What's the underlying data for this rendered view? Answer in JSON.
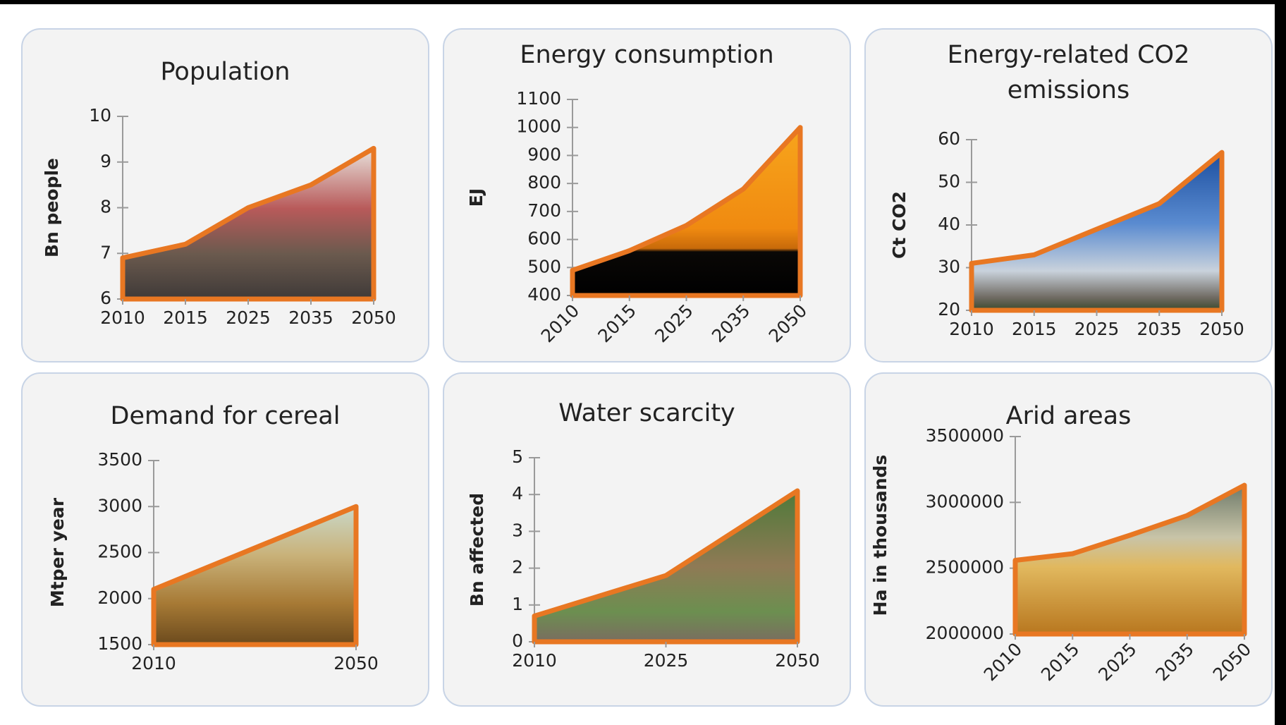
{
  "chart_data": [
    {
      "type": "area",
      "title": "Population",
      "y_label": "Bn people",
      "categories": [
        "2010",
        "2015",
        "2025",
        "2035",
        "2050"
      ],
      "values": [
        6.9,
        7.2,
        8.0,
        8.5,
        9.3
      ],
      "color": "#e87722",
      "ylim": [
        6,
        10
      ],
      "yticks": [
        6,
        7,
        8,
        9,
        10
      ]
    },
    {
      "type": "area",
      "title": "Energy consumption",
      "y_label": "EJ",
      "categories": [
        "2010",
        "2015",
        "2025",
        "2035",
        "2050"
      ],
      "values": [
        490,
        560,
        650,
        780,
        1000
      ],
      "color": "#e87722",
      "ylim": [
        400,
        1100
      ],
      "yticks": [
        400,
        500,
        600,
        700,
        800,
        900,
        1000,
        1100
      ]
    },
    {
      "type": "area",
      "title": "Energy-related CO2 emissions",
      "y_label": "Ct CO2",
      "categories": [
        "2010",
        "2015",
        "2025",
        "2035",
        "2050"
      ],
      "values": [
        31,
        33,
        39,
        45,
        57
      ],
      "color": "#e87722",
      "ylim": [
        20,
        60
      ],
      "yticks": [
        20,
        30,
        40,
        50,
        60
      ]
    },
    {
      "type": "area",
      "title": "Demand for cereal",
      "y_label": "Mtper year",
      "categories": [
        "2010",
        "2050"
      ],
      "values": [
        2100,
        3000
      ],
      "color": "#e87722",
      "ylim": [
        1500,
        3500
      ],
      "yticks": [
        1500,
        2000,
        2500,
        3000,
        3500
      ]
    },
    {
      "type": "area",
      "title": "Water scarcity",
      "y_label": "Bn affected",
      "categories": [
        "2010",
        "2025",
        "2050"
      ],
      "values": [
        0.7,
        1.8,
        4.1
      ],
      "color": "#e87722",
      "ylim": [
        0,
        5
      ],
      "yticks": [
        0,
        1,
        2,
        3,
        4,
        5
      ]
    },
    {
      "type": "area",
      "title": "Arid areas",
      "y_label": "Ha in thousands",
      "categories": [
        "2010",
        "2015",
        "2025",
        "2035",
        "2050"
      ],
      "values": [
        2560000,
        2610000,
        2750000,
        2900000,
        3130000
      ],
      "color": "#e87722",
      "ylim": [
        2000000,
        3500000
      ],
      "yticks": [
        2000000,
        2500000,
        3000000,
        3500000
      ]
    }
  ]
}
